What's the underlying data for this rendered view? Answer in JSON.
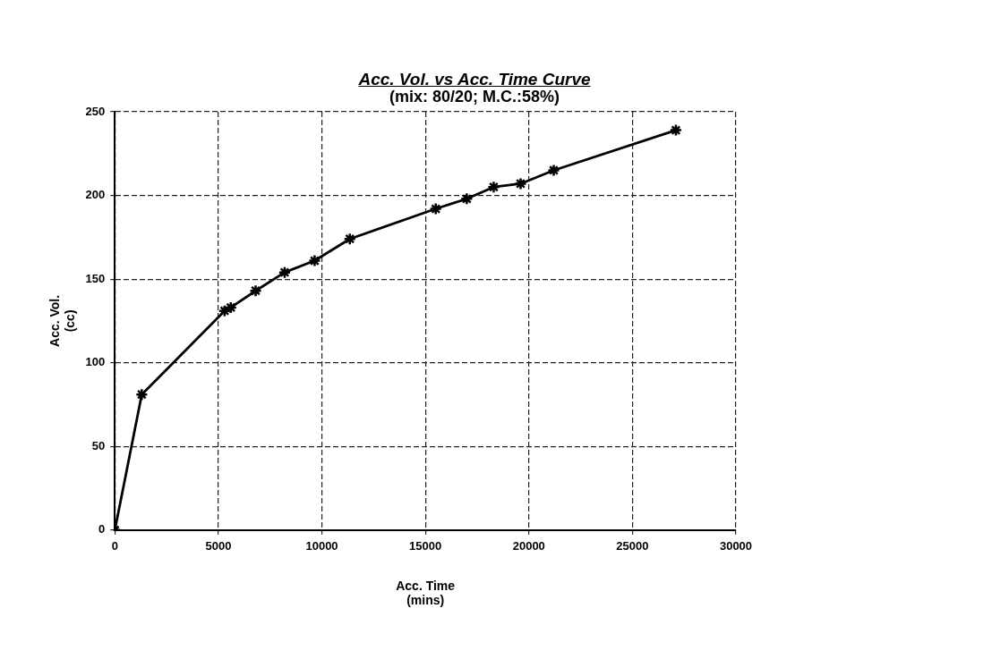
{
  "chart_data": {
    "type": "line",
    "title": "Acc. Vol. vs Acc. Time Curve",
    "subtitle": "(mix: 80/20; M.C.:58%)",
    "xlabel": "Acc. Time\n(mins)",
    "ylabel": "Acc. Vol.\n(cc)",
    "x": [
      0,
      1300,
      5300,
      5600,
      6800,
      8200,
      9650,
      11350,
      15500,
      17000,
      18300,
      19600,
      21200,
      27100
    ],
    "values": [
      0,
      81,
      131,
      133,
      143,
      154,
      161,
      174,
      192,
      198,
      205,
      207,
      215,
      239
    ],
    "color": "#000000",
    "xlim": [
      0,
      30000
    ],
    "xticks": [
      0,
      5000,
      10000,
      15000,
      20000,
      25000,
      30000
    ],
    "ylim": [
      0,
      250
    ],
    "yticks": [
      0,
      50,
      100,
      150,
      200,
      250
    ],
    "grid": true,
    "marker": "cross",
    "line_style": "solid"
  }
}
